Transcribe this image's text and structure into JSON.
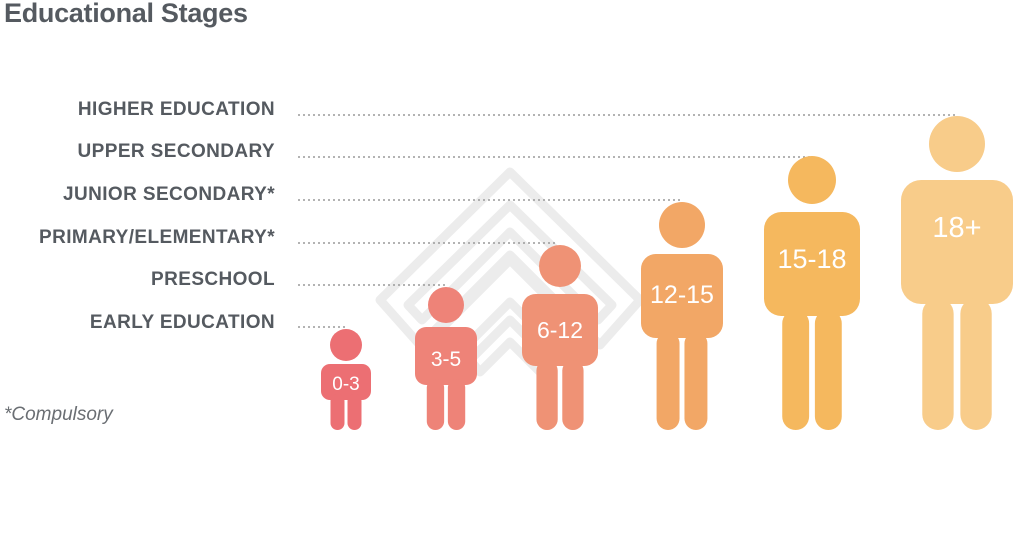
{
  "title": "Educational Stages",
  "stages": [
    {
      "label": "HIGHER EDUCATION",
      "age": "18+",
      "color": "#f8cc8a"
    },
    {
      "label": "UPPER SECONDARY",
      "age": "15-18",
      "color": "#f5b85e"
    },
    {
      "label": "JUNIOR SECONDARY*",
      "age": "12-15",
      "color": "#f2a766"
    },
    {
      "label": "PRIMARY/ELEMENTARY*",
      "age": "6-12",
      "color": "#ef9275"
    },
    {
      "label": "PRESCHOOL",
      "age": "3-5",
      "color": "#ee8378"
    },
    {
      "label": "EARLY EDUCATION",
      "age": "0-3",
      "color": "#ec6f73"
    }
  ],
  "footnote": "*Compulsory",
  "colors": {
    "text": "#555a60",
    "leader": "#9a9a9a",
    "watermark": "#ededed"
  }
}
